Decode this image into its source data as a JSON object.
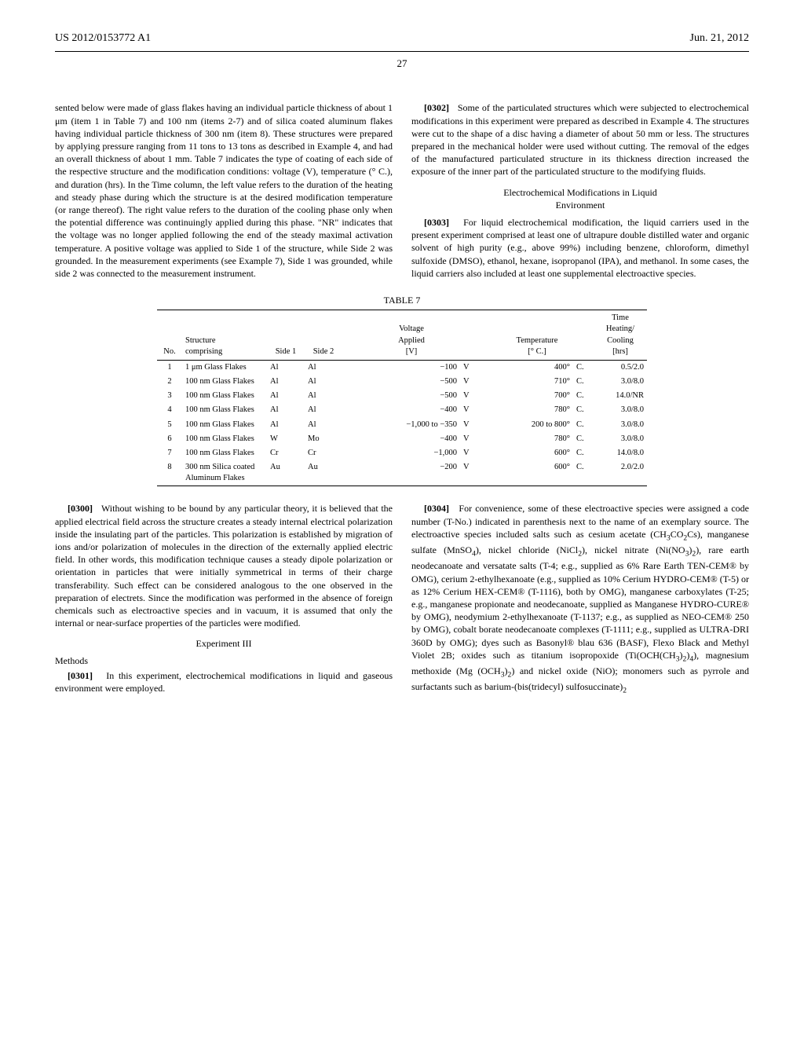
{
  "header": {
    "pub_no": "US 2012/0153772 A1",
    "date": "Jun. 21, 2012",
    "page": "27"
  },
  "top": {
    "left_frag": "sented below were made of glass flakes having an individual particle thickness of about 1 μm (item 1 in Table 7) and 100 nm (items 2-7) and of silica coated aluminum flakes having individual particle thickness of 300 nm (item 8). These structures were prepared by applying pressure ranging from 11 tons to 13 tons as described in Example 4, and had an overall thickness of about 1 mm. Table 7 indicates the type of coating of each side of the respective structure and the modification conditions: voltage (V), temperature (° C.), and duration (hrs). In the Time column, the left value refers to the duration of the heating and steady phase during which the structure is at the desired modification temperature (or range thereof). The right value refers to the duration of the cooling phase only when the potential difference was continuingly applied during this phase. \"NR\" indicates that the voltage was no longer applied following the end of the steady maximal activation temperature. A positive voltage was applied to Side 1 of the structure, while Side 2 was grounded. In the measurement experiments (see Example 7), Side 1 was grounded, while side 2 was connected to the measurement instrument.",
    "p0302_num": "[0302]",
    "p0302": "Some of the particulated structures which were subjected to electrochemical modifications in this experiment were prepared as described in Example 4. The structures were cut to the shape of a disc having a diameter of about 50 mm or less. The structures prepared in the mechanical holder were used without cutting. The removal of the edges of the manufactured particulated structure in its thickness direction increased the exposure of the inner part of the particulated structure to the modifying fluids.",
    "heading_a": "Electrochemical Modifications in Liquid",
    "heading_b": "Environment",
    "p0303_num": "[0303]",
    "p0303": "For liquid electrochemical modification, the liquid carriers used in the present experiment comprised at least one of ultrapure double distilled water and organic solvent of high purity (e.g., above 99%) including benzene, chloroform, dimethyl sulfoxide (DMSO), ethanol, hexane, isopropanol (IPA), and methanol. In some cases, the liquid carriers also included at least one supplemental electroactive species."
  },
  "table7": {
    "caption": "TABLE 7",
    "headers": {
      "no": "No.",
      "structure": "Structure\ncomprising",
      "side1": "Side 1",
      "side2": "Side 2",
      "voltage": "Voltage\nApplied\n[V]",
      "temp": "Temperature\n[° C.]",
      "time": "Time\nHeating/\nCooling\n[hrs]"
    },
    "rows": [
      {
        "no": "1",
        "structure": "1 μm Glass Flakes",
        "s1": "Al",
        "s2": "Al",
        "v": "−100",
        "vu": "V",
        "t": "400°",
        "tu": "C.",
        "time": "0.5/2.0"
      },
      {
        "no": "2",
        "structure": "100 nm Glass Flakes",
        "s1": "Al",
        "s2": "Al",
        "v": "−500",
        "vu": "V",
        "t": "710°",
        "tu": "C.",
        "time": "3.0/8.0"
      },
      {
        "no": "3",
        "structure": "100 nm Glass Flakes",
        "s1": "Al",
        "s2": "Al",
        "v": "−500",
        "vu": "V",
        "t": "700°",
        "tu": "C.",
        "time": "14.0/NR"
      },
      {
        "no": "4",
        "structure": "100 nm Glass Flakes",
        "s1": "Al",
        "s2": "Al",
        "v": "−400",
        "vu": "V",
        "t": "780°",
        "tu": "C.",
        "time": "3.0/8.0"
      },
      {
        "no": "5",
        "structure": "100 nm Glass Flakes",
        "s1": "Al",
        "s2": "Al",
        "v": "−1,000 to −350",
        "vu": "V",
        "t": "200 to 800°",
        "tu": "C.",
        "time": "3.0/8.0"
      },
      {
        "no": "6",
        "structure": "100 nm Glass Flakes",
        "s1": "W",
        "s2": "Mo",
        "v": "−400",
        "vu": "V",
        "t": "780°",
        "tu": "C.",
        "time": "3.0/8.0"
      },
      {
        "no": "7",
        "structure": "100 nm Glass Flakes",
        "s1": "Cr",
        "s2": "Cr",
        "v": "−1,000",
        "vu": "V",
        "t": "600°",
        "tu": "C.",
        "time": "14.0/8.0"
      },
      {
        "no": "8",
        "structure": "300 nm Silica coated Aluminum Flakes",
        "s1": "Au",
        "s2": "Au",
        "v": "−200",
        "vu": "V",
        "t": "600°",
        "tu": "C.",
        "time": "2.0/2.0"
      }
    ]
  },
  "bottom": {
    "p0300_num": "[0300]",
    "p0300": "Without wishing to be bound by any particular theory, it is believed that the applied electrical field across the structure creates a steady internal electrical polarization inside the insulating part of the particles. This polarization is established by migration of ions and/or polarization of molecules in the direction of the externally applied electric field. In other words, this modification technique causes a steady dipole polarization or orientation in particles that were initially symmetrical in terms of their charge transferability. Such effect can be considered analogous to the one observed in the preparation of electrets. Since the modification was performed in the absence of foreign chemicals such as electroactive species and in vacuum, it is assumed that only the internal or near-surface properties of the particles were modified.",
    "exp_heading": "Experiment III",
    "methods_heading": "Methods",
    "p0301_num": "[0301]",
    "p0301": "In this experiment, electrochemical modifications in liquid and gaseous environment were employed.",
    "p0304_num": "[0304]",
    "p0304_a": "For convenience, some of these electroactive species were assigned a code number (T-No.) indicated in parenthesis next to the name of an exemplary source. The electroactive species included salts such as cesium acetate (CH",
    "p0304_b": "CO",
    "p0304_c": "Cs), manganese sulfate (MnSO",
    "p0304_d": "), nickel chloride (NiCl",
    "p0304_e": "), nickel nitrate (Ni(NO",
    "p0304_f": ")",
    "p0304_g": "), rare earth neodecanoate and versatate salts (T-4; e.g., supplied as 6% Rare Earth TEN-CEM® by OMG), cerium 2-ethylhexanoate (e.g., supplied as 10% Cerium HYDRO-CEM® (T-5) or as 12% Cerium HEX-CEM® (T-1116), both by OMG), manganese carboxylates (T-25; e.g., manganese propionate and neodecanoate, supplied as Manganese HYDRO-CURE® by OMG), neodymium 2-ethylhexanoate (T-1137; e.g., as supplied as NEO-CEM® 250 by OMG), cobalt borate neodecanoate complexes (T-1111; e.g., supplied as ULTRA-DRI 360D by OMG); dyes such as Basonyl® blau 636 (BASF), Flexo Black and Methyl Violet 2B; oxides such as titanium isopropoxide (Ti(OCH(CH",
    "p0304_h": ")",
    "p0304_i": "), magnesium methoxide (Mg (OCH",
    "p0304_j": ")",
    "p0304_k": ") and nickel oxide (NiO); monomers such as pyrrole and surfactants such as barium-(bis(tridecyl) sulfosuccinate)"
  }
}
